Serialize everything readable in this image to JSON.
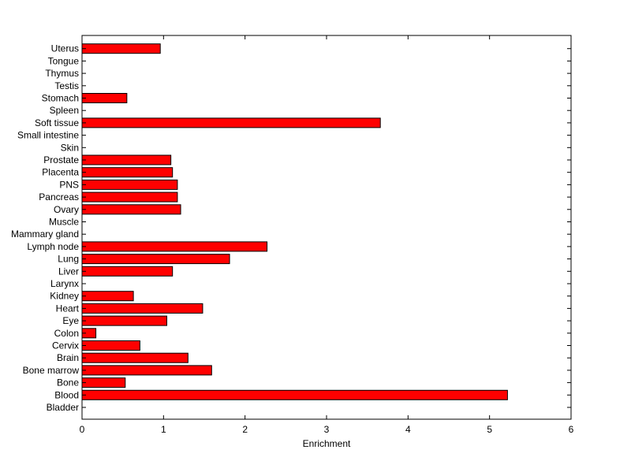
{
  "chart_data": {
    "type": "bar",
    "orientation": "horizontal",
    "xlabel": "Enrichment",
    "ylabel": "",
    "title": "",
    "xlim": [
      0,
      6
    ],
    "xticks": [
      "0",
      "1",
      "2",
      "3",
      "4",
      "5",
      "6"
    ],
    "grid": false,
    "bar_color": "#ff0000",
    "bar_edge_color": "#000000",
    "categories": [
      "Bladder",
      "Blood",
      "Bone",
      "Bone marrow",
      "Brain",
      "Cervix",
      "Colon",
      "Eye",
      "Heart",
      "Kidney",
      "Larynx",
      "Liver",
      "Lung",
      "Lymph node",
      "Mammary gland",
      "Muscle",
      "Ovary",
      "Pancreas",
      "PNS",
      "Placenta",
      "Prostate",
      "Skin",
      "Small intestine",
      "Soft tissue",
      "Spleen",
      "Stomach",
      "Testis",
      "Thymus",
      "Tongue",
      "Uterus"
    ],
    "values": [
      0,
      5.22,
      0.53,
      1.59,
      1.3,
      0.71,
      0.17,
      1.04,
      1.48,
      0.63,
      0,
      1.11,
      1.81,
      2.27,
      0,
      0,
      1.21,
      1.17,
      1.17,
      1.11,
      1.09,
      0,
      0,
      3.66,
      0,
      0.55,
      0,
      0,
      0,
      0.96
    ]
  }
}
